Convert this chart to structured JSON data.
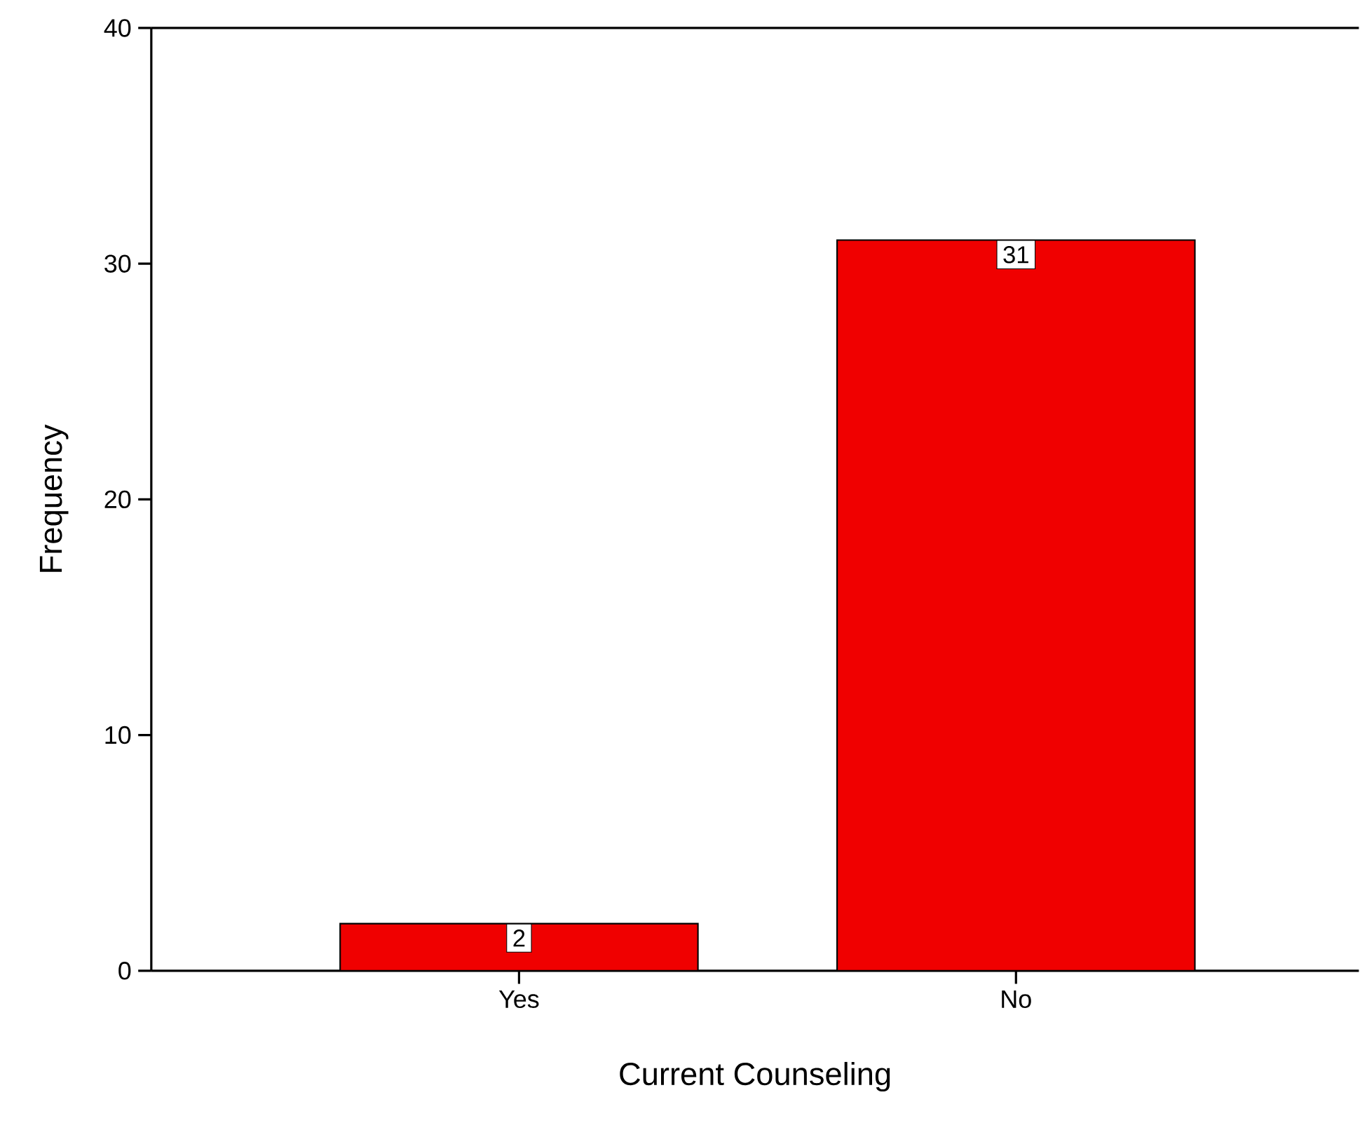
{
  "chart_data": {
    "type": "bar",
    "xlabel": "Current Counseling",
    "ylabel": "Frequency",
    "categories": [
      "Yes",
      "No"
    ],
    "values": [
      2,
      31
    ],
    "color": "#f00000",
    "ylim": [
      0,
      40
    ],
    "yticks": [
      0,
      10,
      20,
      30,
      40
    ],
    "data_labels": true
  }
}
